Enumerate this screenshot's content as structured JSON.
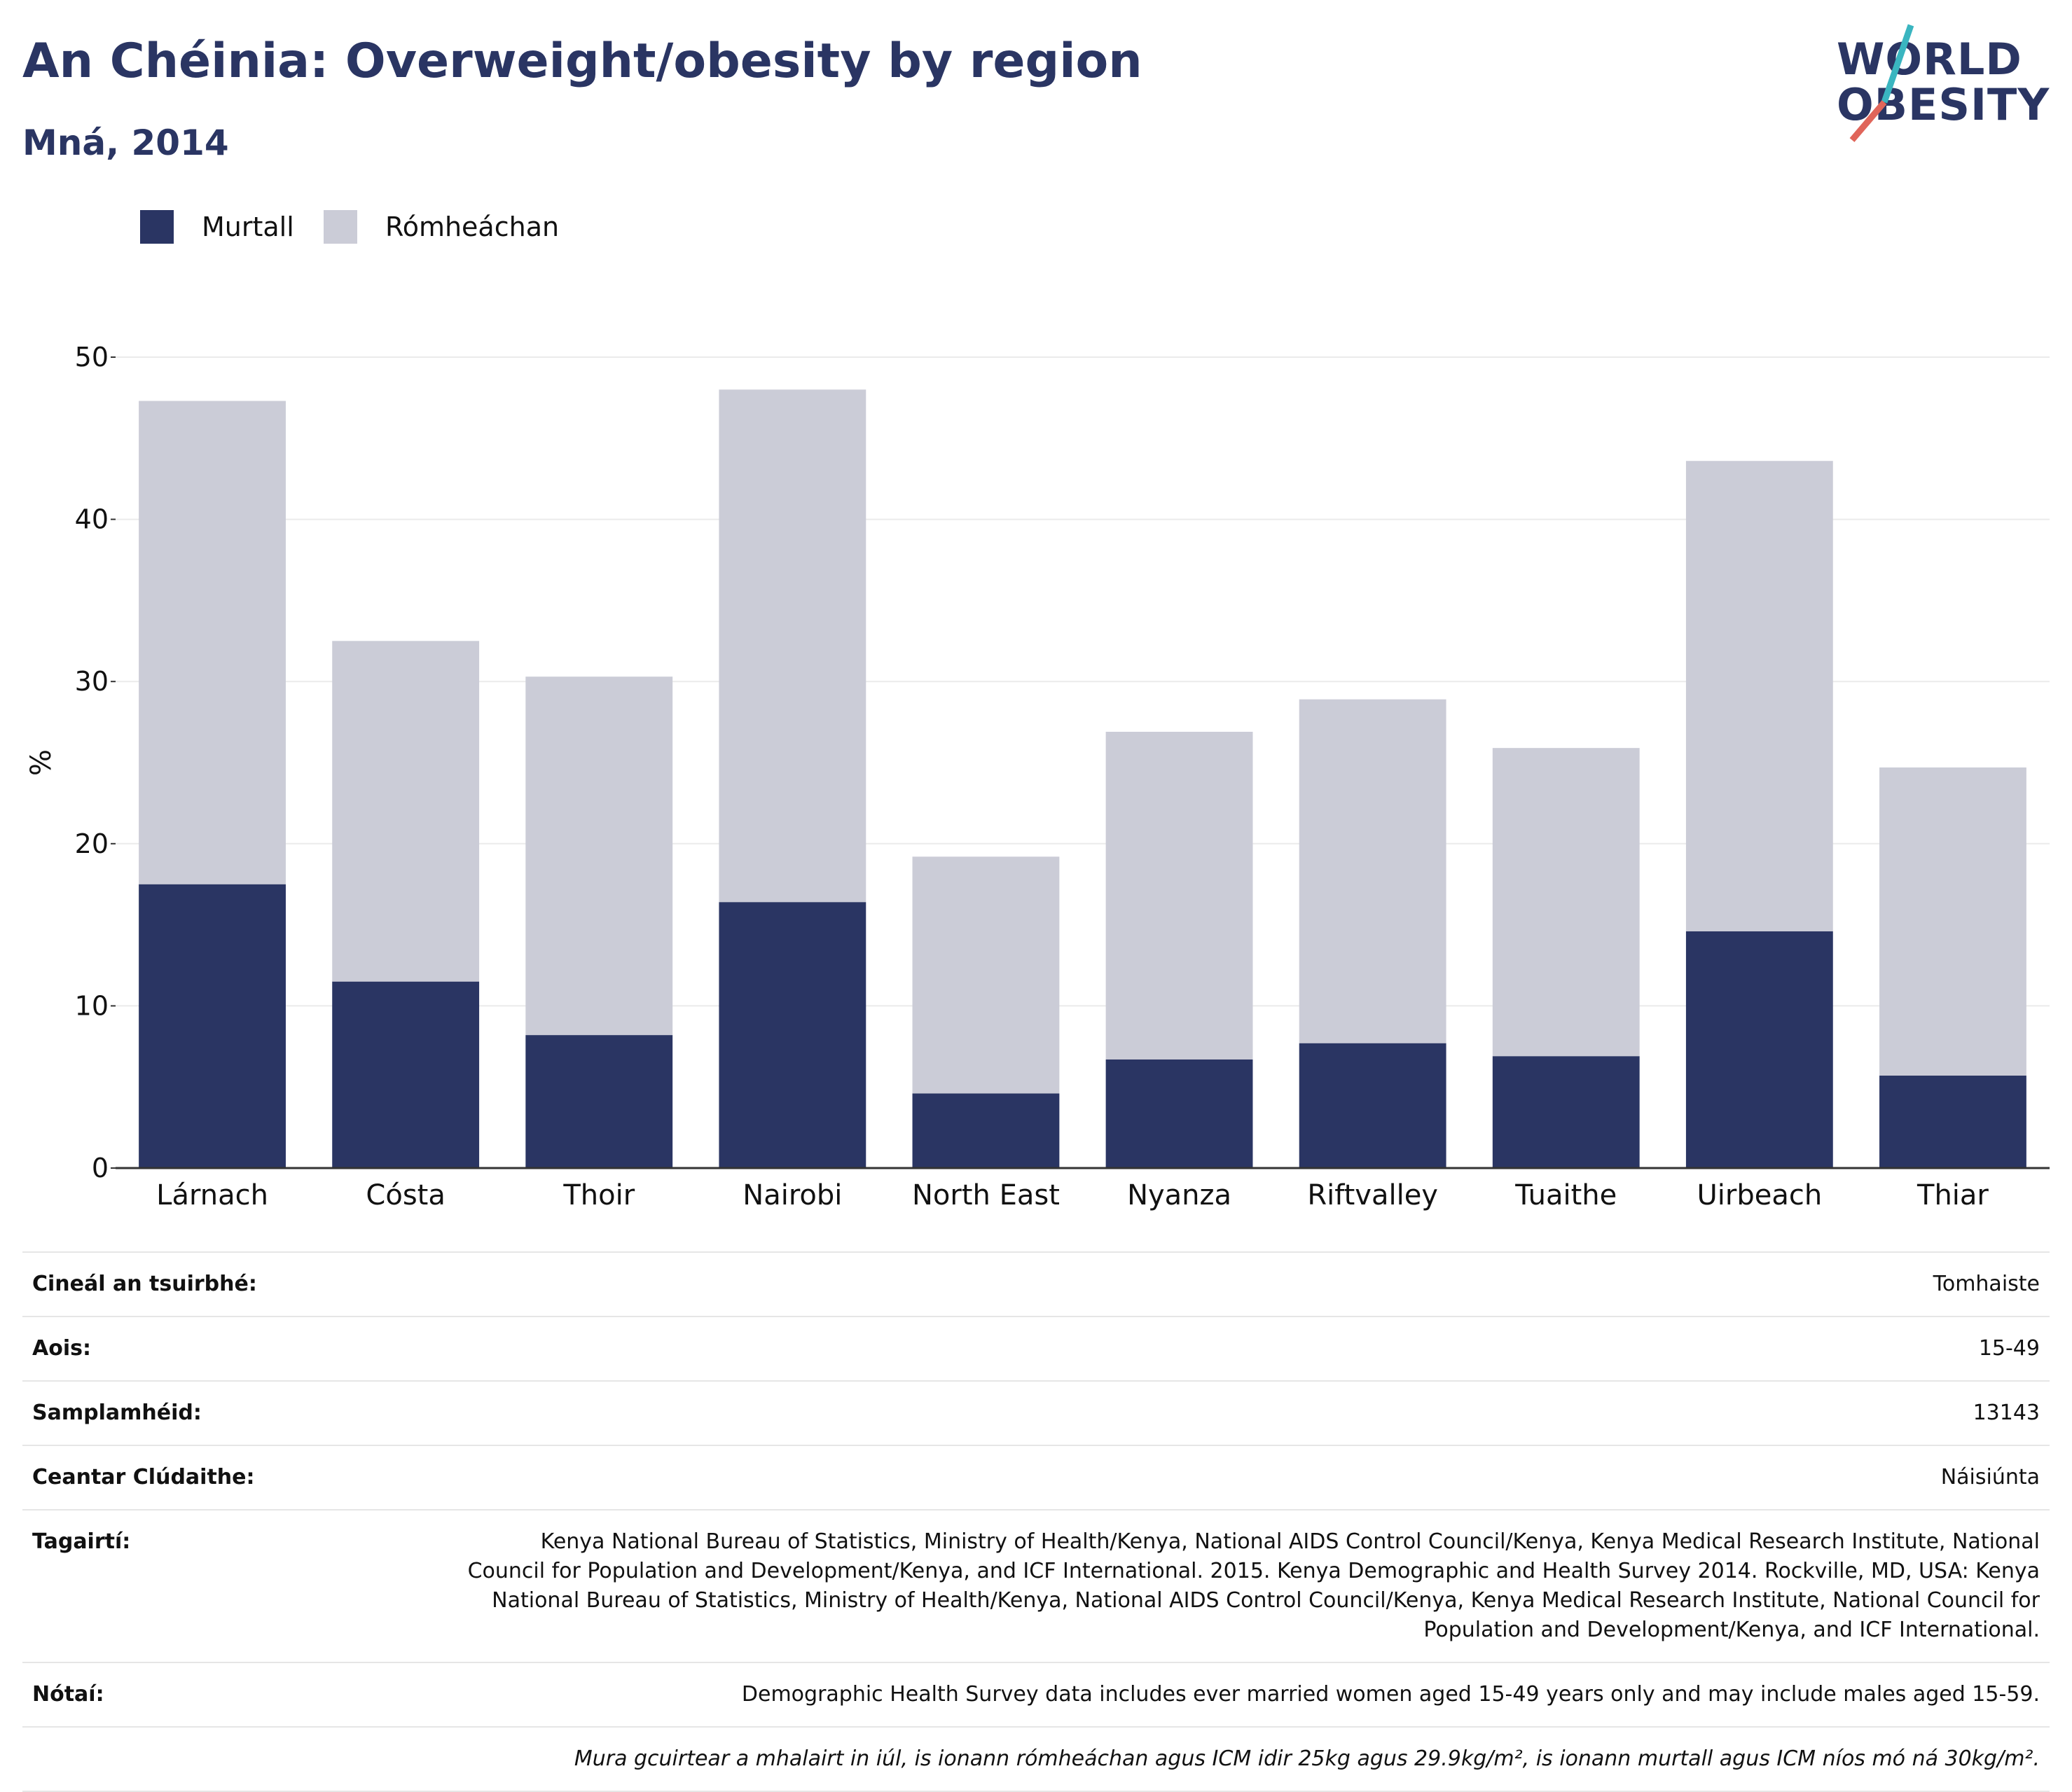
{
  "header": {
    "title": "An Chéinia: Overweight/obesity by region",
    "subtitle": "Mná, 2014",
    "logo_line1": "WORLD",
    "logo_line2": "OBESITY"
  },
  "colors": {
    "obese": "#2a3563",
    "overweight": "#cbccd7",
    "brand": "#2a3563",
    "accent_teal": "#3ab5c0",
    "accent_red": "#e0655a"
  },
  "legend": {
    "obese_label": "Murtall",
    "overweight_label": "Rómheáchan"
  },
  "chart_data": {
    "type": "bar",
    "stacked": true,
    "categories": [
      "Lárnach",
      "Cósta",
      "Thoir",
      "Nairobi",
      "North East",
      "Nyanza",
      "Riftvalley",
      "Tuaithe",
      "Uirbeach",
      "Thiar"
    ],
    "series": [
      {
        "name": "Murtall",
        "values": [
          17.5,
          11.5,
          8.2,
          16.4,
          4.6,
          6.7,
          7.7,
          6.9,
          14.6,
          5.7
        ]
      },
      {
        "name": "Rómheáchan",
        "values": [
          29.8,
          21.0,
          22.1,
          31.6,
          14.6,
          20.2,
          21.2,
          19.0,
          29.0,
          19.0
        ]
      }
    ],
    "ylabel": "%",
    "ylim": [
      0,
      50
    ],
    "yticks": [
      0,
      10,
      20,
      30,
      40,
      50
    ],
    "grid": true,
    "legend_position": "top-left"
  },
  "meta": {
    "rows": [
      {
        "label": "Cineál an tsuirbhé:",
        "value": "Tomhaiste"
      },
      {
        "label": "Aois:",
        "value": "15-49"
      },
      {
        "label": "Samplamhéid:",
        "value": "13143"
      },
      {
        "label": "Ceantar Clúdaithe:",
        "value": "Náisiúnta"
      },
      {
        "label": "Tagairtí:",
        "value": "Kenya National Bureau of Statistics, Ministry of Health/Kenya, National AIDS Control Council/Kenya, Kenya Medical Research Institute, National Council for Population and Development/Kenya, and ICF International. 2015. Kenya Demographic and Health Survey 2014. Rockville, MD, USA: Kenya National Bureau of Statistics, Ministry of Health/Kenya, National AIDS Control Council/Kenya, Kenya Medical Research Institute, National Council for Population and Development/Kenya, and ICF International."
      },
      {
        "label": "Nótaí:",
        "value": "Demographic Health Survey data includes ever married women aged 15-49 years only and may include males aged 15-59."
      },
      {
        "label": "",
        "value": "Mura gcuirtear a mhalairt in iúl, is ionann rómheáchan agus ICM idir 25kg agus 29.9kg/m², is ionann murtall agus ICM níos mó ná 30kg/m²."
      }
    ]
  }
}
